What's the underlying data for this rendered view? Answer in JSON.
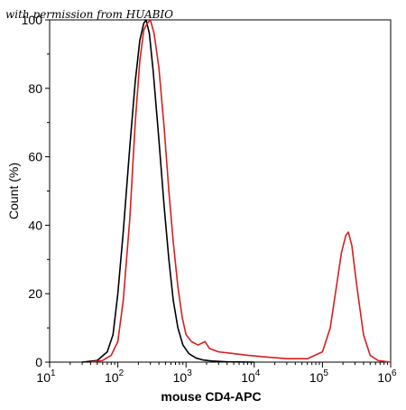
{
  "watermark": "with permission from HUABIO",
  "chart_data": {
    "type": "line",
    "title": "",
    "xlabel": "mouse CD4-APC",
    "ylabel": "Count (%)",
    "xscale": "log",
    "xlim": [
      10,
      1000000
    ],
    "ylim": [
      0,
      100
    ],
    "grid": false,
    "legend": "none",
    "x_ticks": [
      {
        "base": "10",
        "exp": "1"
      },
      {
        "base": "10",
        "exp": "2"
      },
      {
        "base": "10",
        "exp": "3"
      },
      {
        "base": "10",
        "exp": "4"
      },
      {
        "base": "10",
        "exp": "5"
      },
      {
        "base": "10",
        "exp": "6"
      }
    ],
    "y_ticks": [
      "0",
      "20",
      "40",
      "60",
      "80",
      "100"
    ],
    "series": [
      {
        "color": "#000000",
        "points": [
          [
            30,
            0
          ],
          [
            50,
            0.5
          ],
          [
            70,
            3
          ],
          [
            85,
            8
          ],
          [
            100,
            20
          ],
          [
            120,
            38
          ],
          [
            150,
            63
          ],
          [
            180,
            82
          ],
          [
            210,
            94
          ],
          [
            240,
            99
          ],
          [
            260,
            100
          ],
          [
            290,
            96
          ],
          [
            330,
            85
          ],
          [
            400,
            65
          ],
          [
            480,
            45
          ],
          [
            560,
            30
          ],
          [
            650,
            18
          ],
          [
            760,
            10
          ],
          [
            900,
            5
          ],
          [
            1100,
            2.5
          ],
          [
            1400,
            1.2
          ],
          [
            1800,
            0.6
          ],
          [
            2500,
            0.3
          ],
          [
            4000,
            0.1
          ],
          [
            10000,
            0
          ]
        ]
      },
      {
        "color": "#d42020",
        "points": [
          [
            40,
            0
          ],
          [
            60,
            0.5
          ],
          [
            80,
            2
          ],
          [
            100,
            6
          ],
          [
            120,
            18
          ],
          [
            150,
            42
          ],
          [
            180,
            70
          ],
          [
            210,
            88
          ],
          [
            240,
            97
          ],
          [
            270,
            99
          ],
          [
            300,
            100
          ],
          [
            340,
            96
          ],
          [
            400,
            86
          ],
          [
            480,
            68
          ],
          [
            560,
            50
          ],
          [
            650,
            35
          ],
          [
            760,
            22
          ],
          [
            880,
            13
          ],
          [
            1000,
            8
          ],
          [
            1200,
            6
          ],
          [
            1500,
            5
          ],
          [
            1900,
            6
          ],
          [
            2200,
            4
          ],
          [
            3000,
            3
          ],
          [
            5000,
            2.5
          ],
          [
            8000,
            2
          ],
          [
            15000,
            1.5
          ],
          [
            30000,
            1
          ],
          [
            60000,
            1
          ],
          [
            100000,
            3
          ],
          [
            130000,
            10
          ],
          [
            160000,
            22
          ],
          [
            190000,
            32
          ],
          [
            220000,
            37
          ],
          [
            240000,
            38
          ],
          [
            270000,
            34
          ],
          [
            320000,
            22
          ],
          [
            400000,
            8
          ],
          [
            500000,
            2
          ],
          [
            650000,
            0.5
          ],
          [
            1000000,
            0
          ]
        ]
      }
    ]
  }
}
